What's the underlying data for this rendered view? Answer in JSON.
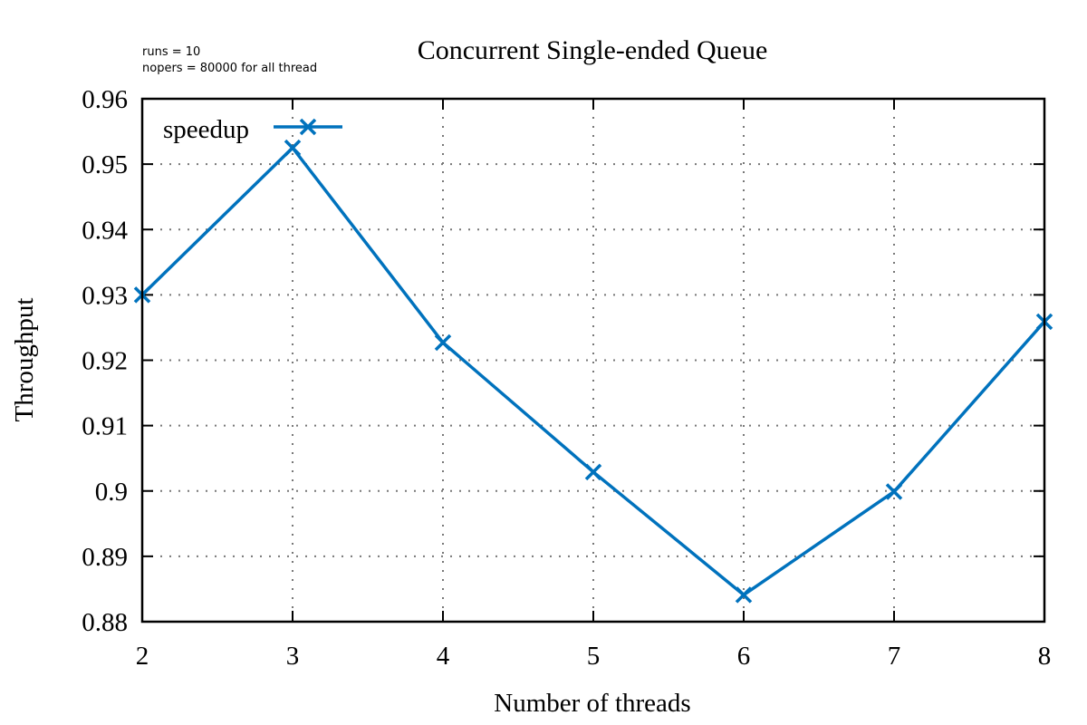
{
  "chart_data": {
    "type": "line",
    "title": "Concurrent Single-ended Queue",
    "notes": [
      "runs = 10",
      "nopers = 80000 for all thread"
    ],
    "xlabel": "Number of threads",
    "ylabel": "Throughput",
    "xlim": [
      2,
      8
    ],
    "ylim": [
      0.88,
      0.96
    ],
    "x_ticks": [
      "2",
      "3",
      "4",
      "5",
      "6",
      "7",
      "8"
    ],
    "y_ticks": [
      "0.88",
      "0.89",
      "0.9",
      "0.91",
      "0.92",
      "0.93",
      "0.94",
      "0.95",
      "0.96"
    ],
    "grid": true,
    "legend_position": "top-left",
    "x": [
      2,
      3,
      4,
      5,
      6,
      7,
      8
    ],
    "series": [
      {
        "name": "speedup",
        "color": "#0072bd",
        "marker": "x",
        "values": [
          0.93,
          0.9525,
          0.9227,
          0.9029,
          0.8841,
          0.8999,
          0.9259
        ]
      }
    ]
  }
}
